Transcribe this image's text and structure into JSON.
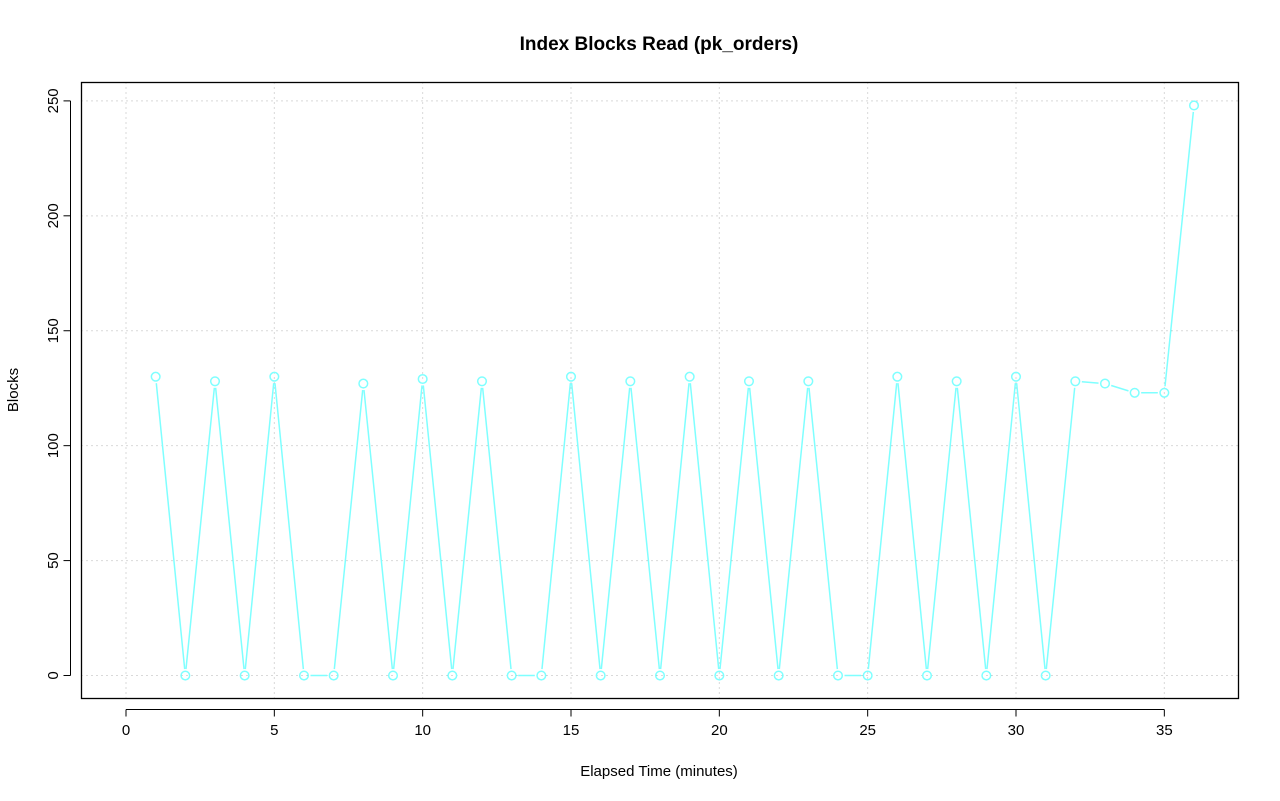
{
  "chart_data": {
    "type": "line",
    "title": "Index Blocks Read (pk_orders)",
    "xlabel": "Elapsed Time (minutes)",
    "ylabel": "Blocks",
    "xlim": [
      -1.5,
      37.5
    ],
    "ylim": [
      -10,
      258
    ],
    "x_ticks": [
      "0",
      "5",
      "10",
      "15",
      "20",
      "25",
      "30",
      "35"
    ],
    "y_ticks": [
      "0",
      "50",
      "100",
      "150",
      "200",
      "250"
    ],
    "grid": true,
    "markers": "open-circle",
    "series": [
      {
        "color": "#7fffff",
        "x": [
          1,
          2,
          3,
          4,
          5,
          6,
          7,
          8,
          9,
          10,
          11,
          12,
          13,
          14,
          15,
          16,
          17,
          18,
          19,
          20,
          21,
          22,
          23,
          24,
          25,
          26,
          27,
          28,
          29,
          30,
          31,
          32,
          33,
          34,
          35,
          36
        ],
        "values": [
          130,
          0,
          128,
          0,
          130,
          0,
          0,
          127,
          0,
          129,
          0,
          128,
          0,
          0,
          130,
          0,
          128,
          0,
          130,
          0,
          128,
          0,
          128,
          0,
          0,
          130,
          0,
          128,
          0,
          130,
          0,
          128,
          127,
          123,
          123,
          248
        ]
      }
    ]
  }
}
